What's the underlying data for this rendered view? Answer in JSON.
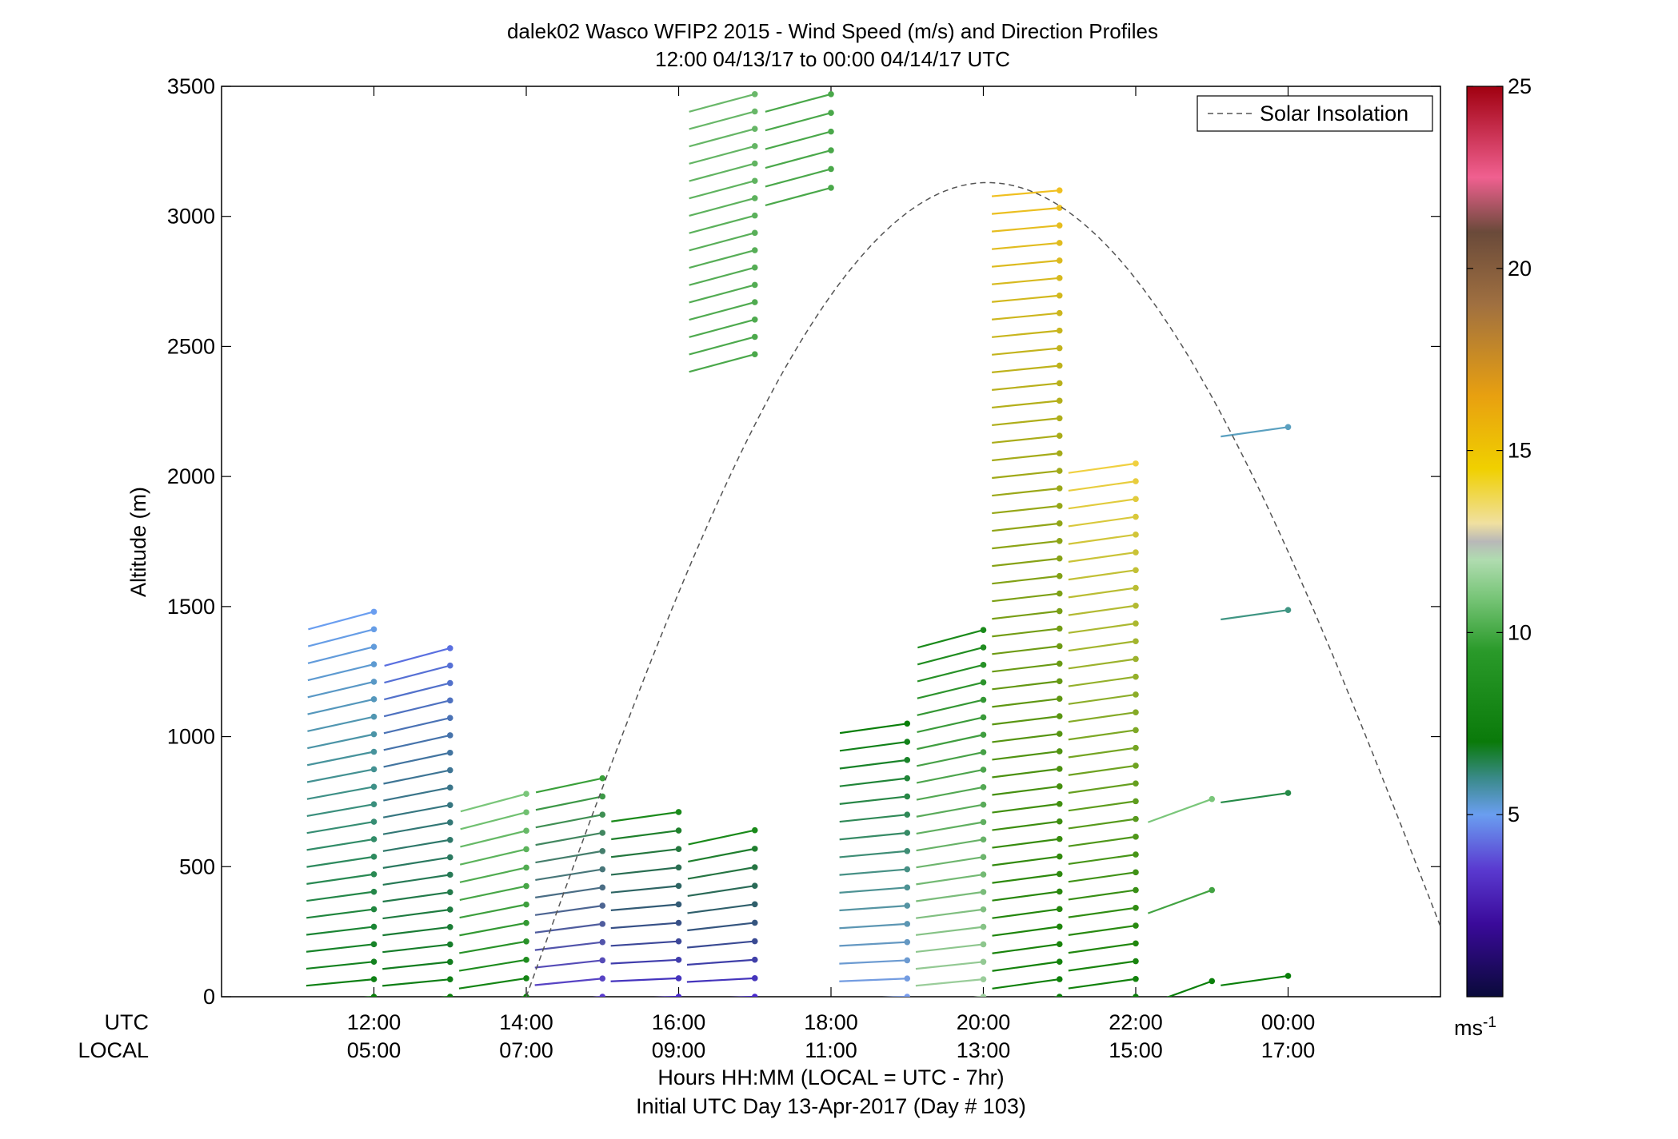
{
  "chart_data": {
    "type": "wind_barb_profile",
    "title": "dalek02 Wasco WFIP2 2015 - Wind Speed (m/s) and Direction Profiles",
    "subtitle": "12:00 04/13/17 to 00:00 04/14/17  UTC",
    "ylabel": "Altitude (m)",
    "ylim": [
      0,
      3500
    ],
    "yticks": [
      "0",
      "500",
      "1000",
      "1500",
      "2000",
      "2500",
      "3000",
      "3500"
    ],
    "xlim": [
      10.0,
      26.0
    ],
    "x_utc_row_label": "UTC",
    "x_local_row_label": "LOCAL",
    "x_utc_ticks": [
      "12:00",
      "14:00",
      "16:00",
      "18:00",
      "20:00",
      "22:00",
      "00:00"
    ],
    "x_local_ticks": [
      "05:00",
      "07:00",
      "09:00",
      "11:00",
      "13:00",
      "15:00",
      "17:00"
    ],
    "xlabel": "Hours HH:MM  (LOCAL = UTC - 7hr)",
    "xlabel2": "Initial UTC Day 13-Apr-2017 (Day # 103)",
    "legend": {
      "label": "Solar Insolation",
      "position": "top-right"
    },
    "colorbar": {
      "range": [
        0,
        25
      ],
      "ticks": [
        "5",
        "10",
        "15",
        "20",
        "25"
      ],
      "unit_base": "ms",
      "unit_exp": "-1"
    },
    "solar_insolation": {
      "start_hour": 14.0,
      "peak_hour": 20.05,
      "peak_altitude": 3130,
      "end_hour": 26.0,
      "end_altitude": 270
    },
    "profiles": [
      {
        "time": 12.0,
        "top": 1480,
        "spacing": 68,
        "bottom_color": "#0a7f0a",
        "upper_color": "#6a9ef0",
        "dir_low": 265,
        "dir_high": 255
      },
      {
        "time": 13.0,
        "top": 1340,
        "spacing": 68,
        "bottom_color": "#0a7f0a",
        "upper_color": "#5a6fe0",
        "dir_low": 265,
        "dir_high": 255
      },
      {
        "time": 14.0,
        "top": 780,
        "spacing": 68,
        "bottom_color": "#0a7f0a",
        "upper_color": "#7ac67a",
        "dir_low": 262,
        "dir_high": 255
      },
      {
        "time": 15.0,
        "top": 840,
        "spacing": 68,
        "bottom_color": "#5a3ad0",
        "upper_color": "#3aa03a",
        "dir_low": 265,
        "dir_high": 258
      },
      {
        "time": 16.0,
        "top": 710,
        "spacing": 68,
        "bottom_color": "#4a2ad0",
        "upper_color": "#1a8a1a",
        "dir_low": 268,
        "dir_high": 262
      },
      {
        "time": 17.0,
        "top": 640,
        "spacing": 68,
        "bottom_color": "#4a2ad0",
        "upper_color": "#1a8a1a",
        "dir_low": 268,
        "dir_high": 258
      },
      {
        "time": 17.0,
        "top": 3470,
        "bottom": 2470,
        "spacing": 68,
        "bottom_color": "#4aa84a",
        "upper_color": "#6ab86a",
        "dir_low": 255,
        "dir_high": 255
      },
      {
        "time": 18.0,
        "top": 3470,
        "bottom": 3110,
        "spacing": 68,
        "bottom_color": "#4aa84a",
        "upper_color": "#4aa84a",
        "dir_low": 255,
        "dir_high": 255
      },
      {
        "time": 19.0,
        "top": 1050,
        "spacing": 68,
        "bottom_color": "#7a9ef0",
        "upper_color": "#0a7f0a",
        "dir_low": 268,
        "dir_high": 262
      },
      {
        "time": 20.0,
        "top": 1410,
        "spacing": 68,
        "bottom_color": "#a0d0a0",
        "upper_color": "#1a8a1a",
        "dir_low": 265,
        "dir_high": 255
      },
      {
        "time": 21.0,
        "top": 3100,
        "spacing": 68,
        "bottom_color": "#0a7f0a",
        "upper_color": "#f0c020",
        "dir_low": 262,
        "dir_high": 265
      },
      {
        "time": 22.0,
        "top": 2050,
        "spacing": 68,
        "bottom_color": "#0a7f0a",
        "upper_color": "#f0d040",
        "dir_low": 262,
        "dir_high": 262
      },
      {
        "time": 23.0,
        "top": 760,
        "bottom": 60,
        "spacing": 300,
        "bottom_color": "#0a7f0a",
        "upper_color": "#7ac67a",
        "dir_low": 250,
        "dir_high": 250
      },
      {
        "time": 24.0,
        "top": 2190,
        "bottom": 80,
        "spacing": 700,
        "bottom_color": "#0a7f0a",
        "upper_color": "#5aa0c0",
        "dir_low": 262,
        "dir_high": 262
      }
    ]
  }
}
